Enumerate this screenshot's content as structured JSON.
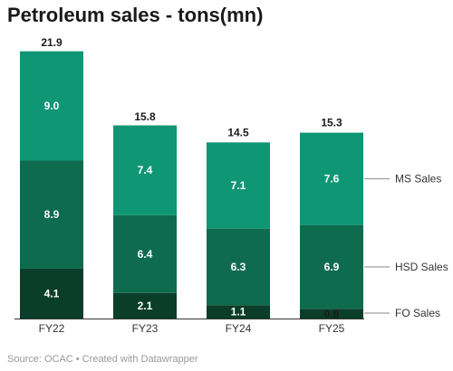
{
  "title": "Petroleum sales - tons(mn)",
  "footer": {
    "source": "Source: OCAC",
    "separator": " • ",
    "credit": "Created with Datawrapper"
  },
  "chart_data": {
    "type": "bar",
    "stacked": true,
    "categories": [
      "FY22",
      "FY23",
      "FY24",
      "FY25"
    ],
    "series": [
      {
        "name": "FO Sales",
        "values": [
          4.1,
          2.1,
          1.1,
          0.8
        ],
        "color": "#0a3d2a"
      },
      {
        "name": "HSD Sales",
        "values": [
          8.9,
          6.4,
          6.3,
          6.9
        ],
        "color": "#0e6b4e"
      },
      {
        "name": "MS Sales",
        "values": [
          9.0,
          7.4,
          7.1,
          7.6
        ],
        "color": "#0f9675"
      }
    ],
    "totals": [
      21.9,
      15.8,
      14.5,
      15.3
    ],
    "title": "Petroleum sales - tons(mn)",
    "xlabel": "",
    "ylabel": "",
    "ylim": [
      0,
      21.9
    ],
    "grid": false,
    "legend": "right, direct labels"
  }
}
